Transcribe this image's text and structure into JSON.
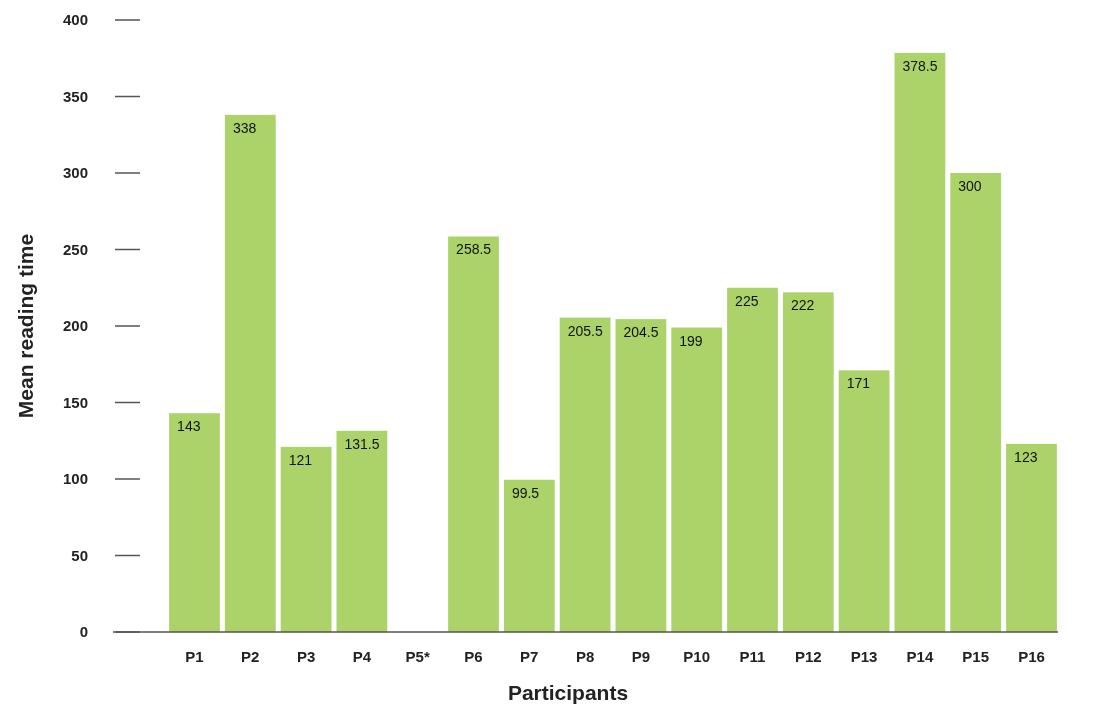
{
  "chart_data": {
    "type": "bar",
    "xlabel": "Participants",
    "ylabel": "Mean reading time",
    "categories": [
      "P1",
      "P2",
      "P3",
      "P4",
      "P5*",
      "P6",
      "P7",
      "P8",
      "P9",
      "P10",
      "P11",
      "P12",
      "P13",
      "P14",
      "P15",
      "P16"
    ],
    "values": [
      143,
      338,
      121,
      131.5,
      null,
      258.5,
      99.5,
      205.5,
      204.5,
      199,
      225,
      222,
      171,
      378.5,
      300,
      123
    ],
    "color": "#abd36a",
    "ylim": [
      0,
      400
    ],
    "yticks": [
      0,
      50,
      100,
      150,
      200,
      250,
      300,
      350,
      400
    ],
    "data_labels": true
  }
}
